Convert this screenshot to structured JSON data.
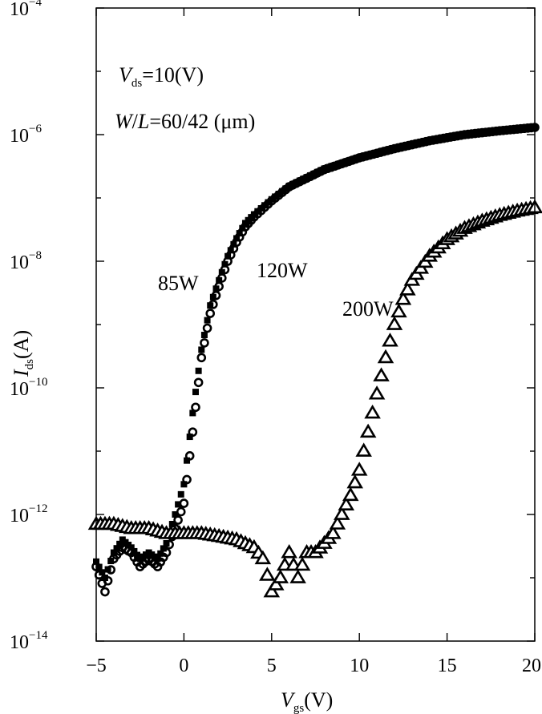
{
  "chart_data": {
    "type": "scatter",
    "xlabel": {
      "main": "V",
      "sub": "gs",
      "unit": "(V)"
    },
    "ylabel": {
      "main": "I",
      "sub": "ds",
      "unit": "(A)"
    },
    "xlim": [
      -5,
      20
    ],
    "ylim_exponent": [
      -14,
      -4
    ],
    "y_scale": "log",
    "x_ticks": [
      "-5",
      "0",
      "5",
      "10",
      "15",
      "20"
    ],
    "y_ticks": [
      {
        "base": "10",
        "exp": "-14"
      },
      {
        "base": "10",
        "exp": "-12"
      },
      {
        "base": "10",
        "exp": "-10"
      },
      {
        "base": "10",
        "exp": "-8"
      },
      {
        "base": "10",
        "exp": "-6"
      },
      {
        "base": "10",
        "exp": "-4"
      }
    ],
    "annotations": {
      "vds": {
        "main": "V",
        "sub": "ds",
        "rest": "=10(V)"
      },
      "wl": {
        "w": "W",
        "slash": "/",
        "l": "L",
        "rest": "=60/42 (μm)"
      }
    },
    "series": [
      {
        "name": "85W",
        "marker": "circle",
        "x": [
          -5,
          -4.5,
          -4,
          -3.5,
          -3,
          -2.5,
          -2,
          -1.5,
          -1,
          -0.5,
          0,
          0.5,
          1,
          1.5,
          2,
          2.5,
          3,
          3.5,
          4,
          5,
          6,
          8,
          10,
          12,
          14,
          16,
          18,
          20
        ],
        "y": [
          1.5e-13,
          6e-14,
          2e-13,
          3e-13,
          2.5e-13,
          1.5e-13,
          2e-13,
          1.5e-13,
          2.5e-13,
          6e-13,
          1.5e-12,
          2e-11,
          3e-10,
          1.5e-09,
          4e-09,
          1e-08,
          2e-08,
          3.5e-08,
          5e-08,
          9e-08,
          1.5e-07,
          2.8e-07,
          4.3e-07,
          6e-07,
          8e-07,
          1e-06,
          1.15e-06,
          1.3e-06
        ]
      },
      {
        "name": "120W",
        "marker": "square",
        "x": [
          -5,
          -4.5,
          -4,
          -3.5,
          -3,
          -2.5,
          -2,
          -1.5,
          -1,
          -0.5,
          0,
          0.5,
          1,
          1.5,
          2,
          2.5,
          3,
          3.5,
          4,
          5,
          6,
          8,
          10,
          12,
          14,
          16,
          18,
          20
        ],
        "y": [
          1.8e-13,
          1e-13,
          2.5e-13,
          4e-13,
          3e-13,
          2e-13,
          2.5e-13,
          2e-13,
          3.5e-13,
          1e-12,
          3e-12,
          4e-11,
          4e-10,
          2e-09,
          5e-09,
          1.2e-08,
          2.3e-08,
          4e-08,
          5.5e-08,
          9.5e-08,
          1.55e-07,
          2.9e-07,
          4.4e-07,
          6.1e-07,
          8.1e-07,
          1e-06,
          1.15e-06,
          1.3e-06
        ]
      },
      {
        "name": "200W",
        "marker": "triangle",
        "x": [
          -5,
          -4,
          -3,
          -2,
          -1,
          0,
          1,
          2,
          3,
          4,
          4.5,
          5,
          5.5,
          6,
          6.5,
          7,
          7.5,
          8,
          8.5,
          9,
          9.5,
          10,
          10.5,
          11,
          11.5,
          12,
          12.5,
          13,
          14,
          15,
          16,
          17,
          18,
          19,
          20
        ],
        "y": [
          7e-13,
          7e-13,
          6e-13,
          6e-13,
          5e-13,
          5e-13,
          5e-13,
          4.5e-13,
          4e-13,
          3e-13,
          2e-13,
          6e-14,
          1e-13,
          2.5e-13,
          1e-13,
          2.5e-13,
          2.5e-13,
          3.5e-13,
          5e-13,
          1e-12,
          2e-12,
          5e-12,
          2e-11,
          8e-11,
          3e-10,
          1e-09,
          2.5e-09,
          5e-09,
          1.2e-08,
          2.2e-08,
          3.3e-08,
          4.3e-08,
          5.3e-08,
          6.2e-08,
          7e-08
        ]
      }
    ]
  }
}
